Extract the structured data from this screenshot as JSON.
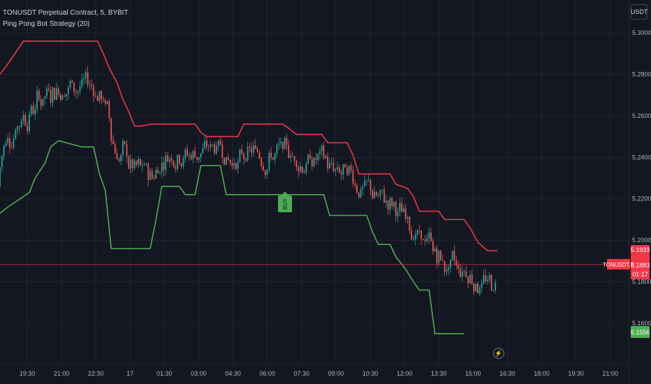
{
  "header": {
    "line1": "TONUSDT Perpetual Contract, 5, BYBIT",
    "line2": "Ping Pong Bot Strategy (20)"
  },
  "currency_button": "USDT",
  "price_labels": {
    "upper_value": "5.1933",
    "last_value": "5.1883",
    "countdown": "01:17",
    "symbol": "TONUSDT.P",
    "lower_value": "5.1556"
  },
  "signal_label": "BUY",
  "icons": {
    "bolt": "lightning-icon"
  },
  "colors": {
    "background": "#131722",
    "grid": "#2a2e39",
    "axis_text": "#b2b5be",
    "up_candle": "#26a69a",
    "down_candle": "#ef5350",
    "upper_band": "#f23645",
    "lower_band": "#4caf50",
    "last_price_line": "#f23645",
    "buy_label": "#4caf50"
  },
  "chart_data": {
    "type": "line",
    "y_axis": {
      "range": [
        5.146,
        5.306
      ],
      "ticks": [
        "5.3000",
        "5.2800",
        "5.2600",
        "5.2400",
        "5.2200",
        "5.2000",
        "5.1800",
        "5.1600"
      ],
      "tick_values": [
        5.3,
        5.28,
        5.26,
        5.24,
        5.22,
        5.2,
        5.18,
        5.16
      ],
      "position": "right"
    },
    "x_axis": {
      "ticks": [
        "19:30",
        "21:00",
        "22:30",
        "17",
        "01:30",
        "03:00",
        "04:30",
        "06:00",
        "07:30",
        "09:00",
        "10:30",
        "12:00",
        "13:30",
        "15:00",
        "16:30",
        "18:00",
        "19:30",
        "21:00"
      ]
    },
    "grid": true,
    "series": [
      {
        "key": "upper",
        "values": [
          5.282,
          5.282,
          5.288,
          5.296,
          5.296,
          5.296,
          5.296,
          5.296,
          5.296,
          5.296,
          5.296,
          5.296,
          5.296,
          5.296,
          5.296,
          5.296,
          5.296,
          5.296,
          5.296,
          5.296,
          5.296,
          5.296,
          5.296,
          5.29,
          5.283,
          5.283,
          5.276,
          5.276,
          5.268,
          5.262,
          5.262,
          5.255,
          5.255,
          5.255,
          5.256,
          5.256,
          5.256,
          5.256,
          5.256,
          5.256,
          5.256,
          5.256,
          5.256,
          5.256,
          5.256,
          5.256,
          5.256,
          5.256,
          5.256,
          5.256,
          5.256,
          5.252,
          5.25,
          5.25,
          5.25,
          5.25,
          5.25,
          5.25,
          5.25,
          5.25,
          5.25,
          5.25,
          5.25,
          5.25,
          5.25,
          5.25,
          5.25,
          5.25,
          5.25,
          5.25,
          5.25,
          5.25,
          5.25,
          5.25,
          5.25,
          5.25,
          5.25,
          5.25,
          5.25,
          5.25,
          5.25,
          5.25,
          5.255,
          5.256,
          5.256,
          5.256,
          5.256,
          5.256,
          5.256,
          5.256,
          5.256,
          5.256,
          5.256,
          5.256,
          5.256,
          5.256,
          5.256,
          5.256,
          5.256,
          5.256,
          5.256,
          5.256,
          5.256,
          5.256,
          5.256,
          5.256,
          5.256,
          5.256,
          5.256,
          5.256,
          5.256,
          5.256,
          5.256,
          5.256,
          5.256,
          5.256,
          5.256,
          5.256,
          5.256,
          5.256,
          5.256,
          5.256,
          5.256,
          5.256,
          5.256,
          5.256,
          5.256,
          5.256,
          5.256,
          5.256,
          5.254,
          5.254,
          5.254,
          5.251,
          5.251,
          5.251,
          5.251,
          5.251,
          5.251,
          5.247,
          5.247,
          5.247,
          5.247,
          5.247,
          5.247,
          5.247,
          5.247,
          5.247,
          5.247,
          5.247,
          5.247,
          5.247,
          5.247,
          5.247,
          5.247,
          5.247,
          5.241,
          5.232,
          5.232,
          5.232,
          5.232,
          5.232,
          5.232,
          5.232,
          5.232,
          5.232,
          5.227,
          5.227,
          5.227,
          5.227,
          5.227,
          5.227,
          5.227,
          5.227,
          5.227,
          5.227,
          5.225,
          5.225,
          5.221,
          5.214,
          5.214,
          5.214,
          5.214,
          5.214,
          5.214,
          5.214,
          5.21,
          5.21,
          5.21,
          5.21,
          5.21,
          5.21,
          5.21,
          5.21,
          5.21,
          5.21,
          5.21,
          5.21,
          5.21,
          5.21,
          5.21,
          5.206,
          5.206,
          5.206,
          5.206,
          5.206,
          5.206,
          5.206,
          5.199,
          5.199,
          5.199,
          5.195,
          5.195,
          5.195,
          5.195,
          5.195,
          5.195,
          5.195,
          5.195
        ],
        "step": 1
      },
      {
        "key": "lower",
        "values": [
          5.213,
          5.213,
          5.213,
          5.213,
          5.216,
          5.216,
          5.216,
          5.216,
          5.216,
          5.216,
          5.216,
          5.216,
          5.216,
          5.216,
          5.216,
          5.223,
          5.223,
          5.223,
          5.23,
          5.23,
          5.23,
          5.23,
          5.23,
          5.237,
          5.237,
          5.24,
          5.24,
          5.245,
          5.248,
          5.248,
          5.245,
          5.245,
          5.245,
          5.245,
          5.245,
          5.245,
          5.245,
          5.245,
          5.245,
          5.245,
          5.245,
          5.245,
          5.245,
          5.245,
          5.245,
          5.245,
          5.245,
          5.245,
          5.245,
          5.245,
          5.245,
          5.245,
          5.245,
          5.245,
          5.245,
          5.245,
          5.245,
          5.245,
          5.245,
          5.245,
          5.245,
          5.245,
          5.245,
          5.245,
          5.245,
          5.245,
          5.245,
          5.245,
          5.245,
          5.245,
          5.245,
          5.24,
          5.238,
          5.232,
          5.227,
          5.227,
          5.227,
          5.196,
          5.196,
          5.196,
          5.196,
          5.196,
          5.196,
          5.196,
          5.196,
          5.196,
          5.196,
          5.196,
          5.196,
          5.196,
          5.196,
          5.196,
          5.196,
          5.196,
          5.196,
          5.196,
          5.196,
          5.196,
          5.196,
          5.196,
          5.196,
          5.196,
          5.196,
          5.196,
          5.196,
          5.196,
          5.196,
          5.196,
          5.196,
          5.196,
          5.196,
          5.196,
          5.196,
          5.21,
          5.22,
          5.226,
          5.226,
          5.226,
          5.226,
          5.226,
          5.226,
          5.226,
          5.232,
          5.236,
          5.236,
          5.236,
          5.236,
          5.236,
          5.236,
          5.236,
          5.236,
          5.236,
          5.236,
          5.236,
          5.236,
          5.236,
          5.236,
          5.236,
          5.236,
          5.236,
          5.236,
          5.236,
          5.236,
          5.227,
          5.227,
          5.227,
          5.227,
          5.227,
          5.227,
          5.227,
          5.227,
          5.227,
          5.222,
          5.222,
          5.222,
          5.222,
          5.222,
          5.222,
          5.222,
          5.222,
          5.222,
          5.222,
          5.222,
          5.222,
          5.222,
          5.222,
          5.222,
          5.222,
          5.222,
          5.222,
          5.222,
          5.222,
          5.222,
          5.222,
          5.222,
          5.222,
          5.222,
          5.222,
          5.222,
          5.222,
          5.226,
          5.226,
          5.226,
          5.226,
          5.226,
          5.226,
          5.226,
          5.226,
          5.226,
          5.226,
          5.226,
          5.226,
          5.226,
          5.226,
          5.226,
          5.226,
          5.226,
          5.226,
          5.226,
          5.226,
          5.226,
          5.226,
          5.226,
          5.226,
          5.226,
          5.226,
          5.226,
          5.226,
          5.226,
          5.226,
          5.226,
          5.226,
          5.226,
          5.226,
          5.226,
          5.226,
          5.226,
          5.226,
          5.226,
          5.226,
          5.226,
          5.226,
          5.226,
          5.226,
          5.226,
          5.226,
          5.226,
          5.226,
          5.226,
          5.226,
          5.226,
          5.226
        ],
        "step": 1
      }
    ],
    "upper_band": [
      [
        0,
        5.28
      ],
      [
        4,
        5.285
      ],
      [
        12,
        5.296
      ],
      [
        50,
        5.296
      ],
      [
        53,
        5.29
      ],
      [
        56,
        5.283
      ],
      [
        60,
        5.276
      ],
      [
        63,
        5.268
      ],
      [
        66,
        5.262
      ],
      [
        69,
        5.255
      ],
      [
        72,
        5.255
      ],
      [
        78,
        5.256
      ],
      [
        100,
        5.256
      ],
      [
        103,
        5.252
      ],
      [
        106,
        5.25
      ],
      [
        122,
        5.25
      ],
      [
        125,
        5.256
      ],
      [
        145,
        5.256
      ],
      [
        148,
        5.254
      ],
      [
        152,
        5.251
      ],
      [
        165,
        5.251
      ],
      [
        168,
        5.247
      ],
      [
        178,
        5.247
      ],
      [
        181,
        5.241
      ],
      [
        184,
        5.232
      ],
      [
        200,
        5.232
      ],
      [
        203,
        5.227
      ],
      [
        209,
        5.225
      ],
      [
        212,
        5.221
      ],
      [
        215,
        5.214
      ],
      [
        225,
        5.214
      ],
      [
        228,
        5.21
      ],
      [
        238,
        5.21
      ],
      [
        241,
        5.206
      ],
      [
        245,
        5.199
      ],
      [
        250,
        5.195
      ],
      [
        255,
        5.195
      ]
    ],
    "lower_band": [
      [
        0,
        5.213
      ],
      [
        4,
        5.216
      ],
      [
        15,
        5.223
      ],
      [
        18,
        5.23
      ],
      [
        23,
        5.237
      ],
      [
        26,
        5.245
      ],
      [
        30,
        5.248
      ],
      [
        42,
        5.245
      ],
      [
        48,
        5.245
      ],
      [
        51,
        5.232
      ],
      [
        54,
        5.224
      ],
      [
        57,
        5.196
      ],
      [
        77,
        5.196
      ],
      [
        80,
        5.21
      ],
      [
        83,
        5.226
      ],
      [
        92,
        5.226
      ],
      [
        95,
        5.222
      ],
      [
        100,
        5.222
      ],
      [
        103,
        5.236
      ],
      [
        113,
        5.236
      ],
      [
        116,
        5.222
      ],
      [
        144,
        5.222
      ],
      [
        166,
        5.222
      ],
      [
        169,
        5.212
      ],
      [
        188,
        5.212
      ],
      [
        191,
        5.204
      ],
      [
        194,
        5.198
      ],
      [
        200,
        5.198
      ],
      [
        203,
        5.192
      ],
      [
        208,
        5.186
      ],
      [
        212,
        5.18
      ],
      [
        215,
        5.176
      ],
      [
        220,
        5.176
      ],
      [
        223,
        5.155
      ],
      [
        238,
        5.155
      ]
    ],
    "last_price": 5.1883
  }
}
